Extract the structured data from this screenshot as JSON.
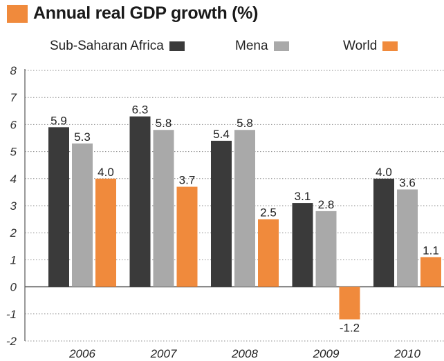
{
  "chart_data": {
    "type": "bar",
    "title": "Annual real GDP growth (%)",
    "categories": [
      "2006",
      "2007",
      "2008",
      "2009",
      "2010"
    ],
    "series": [
      {
        "name": "Sub-Saharan Africa",
        "color": "#3a3a3a",
        "values": [
          5.9,
          6.3,
          5.4,
          3.1,
          4.0
        ],
        "labels": [
          "5.9",
          "6.3",
          "5.4",
          "3.1",
          "4.0"
        ]
      },
      {
        "name": "Mena",
        "color": "#a9a9a9",
        "values": [
          5.3,
          5.8,
          5.8,
          2.8,
          3.6
        ],
        "labels": [
          "5.3",
          "5.8",
          "5.8",
          "2.8",
          "3.6"
        ]
      },
      {
        "name": "World",
        "color": "#f08a3c",
        "values": [
          4.0,
          3.7,
          2.5,
          -1.2,
          1.1
        ],
        "labels": [
          "4.0",
          "3.7",
          "2.5",
          "-1.2",
          "1.1"
        ]
      }
    ],
    "yticks": [
      "-2",
      "-1",
      "0",
      "1",
      "2",
      "3",
      "4",
      "5",
      "6",
      "7",
      "8"
    ],
    "ylim": [
      -2,
      8
    ],
    "grid": true,
    "legend": "top"
  },
  "colors": {
    "accent": "#f08a3c"
  }
}
